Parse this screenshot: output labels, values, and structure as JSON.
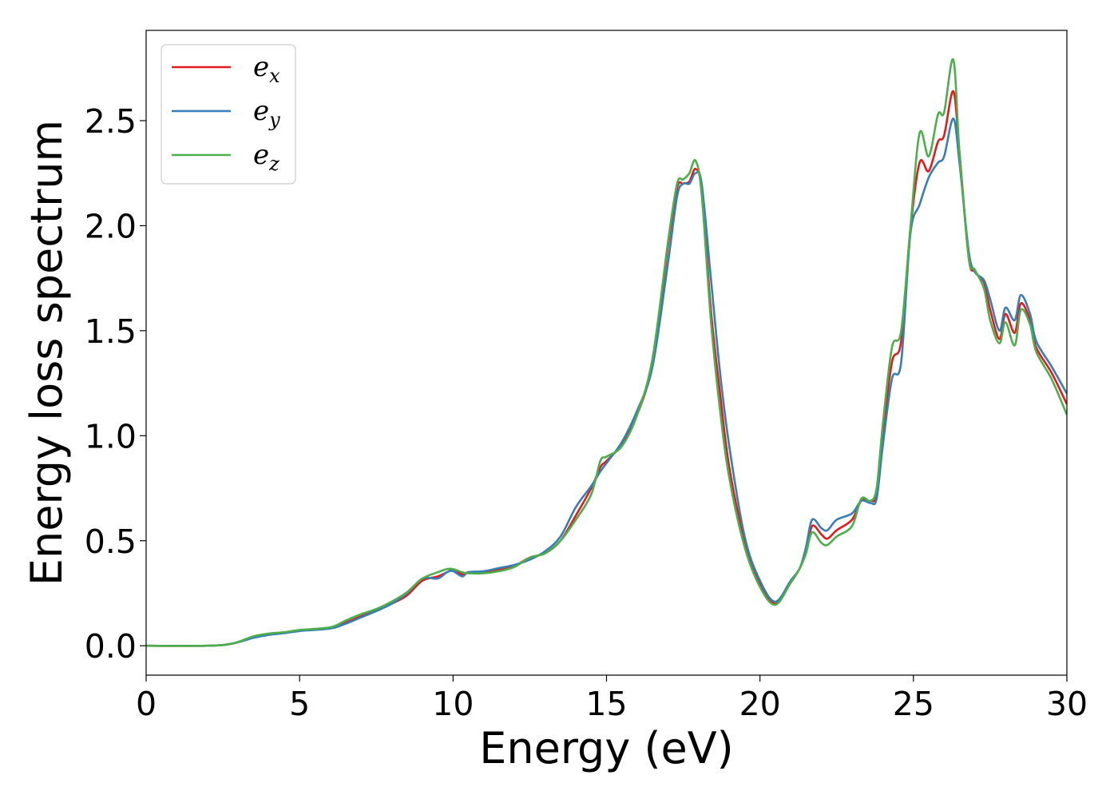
{
  "chart_data": {
    "type": "line",
    "title": "",
    "xlabel": "Energy (eV)",
    "ylabel": "Energy loss spectrum",
    "xlim": [
      0,
      30
    ],
    "ylim": [
      -0.14,
      2.93
    ],
    "xticks": [
      0,
      5,
      10,
      15,
      20,
      25,
      30
    ],
    "xtick_labels": [
      "0",
      "5",
      "10",
      "15",
      "20",
      "25",
      "30"
    ],
    "yticks": [
      0.0,
      0.5,
      1.0,
      1.5,
      2.0,
      2.5
    ],
    "ytick_labels": [
      "0.0",
      "0.5",
      "1.0",
      "1.5",
      "2.0",
      "2.5"
    ],
    "grid": false,
    "legend_position": "top-left",
    "series": [
      {
        "name": "e_x",
        "legend": {
          "base": "e",
          "sub": "x"
        },
        "color": "#e41a1c",
        "points": [
          [
            0,
            0.0
          ],
          [
            2,
            0.0
          ],
          [
            2.8,
            0.01
          ],
          [
            3.5,
            0.04
          ],
          [
            4,
            0.055
          ],
          [
            4.5,
            0.062
          ],
          [
            5,
            0.072
          ],
          [
            6,
            0.085
          ],
          [
            6.5,
            0.11
          ],
          [
            7,
            0.14
          ],
          [
            7.5,
            0.17
          ],
          [
            8,
            0.2
          ],
          [
            8.5,
            0.24
          ],
          [
            9,
            0.31
          ],
          [
            9.5,
            0.33
          ],
          [
            9.8,
            0.35
          ],
          [
            10,
            0.36
          ],
          [
            10.3,
            0.34
          ],
          [
            10.5,
            0.35
          ],
          [
            11,
            0.35
          ],
          [
            11.5,
            0.36
          ],
          [
            12,
            0.38
          ],
          [
            12.5,
            0.42
          ],
          [
            13,
            0.44
          ],
          [
            13.5,
            0.5
          ],
          [
            14,
            0.62
          ],
          [
            14.5,
            0.75
          ],
          [
            14.8,
            0.85
          ],
          [
            15,
            0.88
          ],
          [
            15.5,
            0.96
          ],
          [
            16,
            1.1
          ],
          [
            16.5,
            1.35
          ],
          [
            17,
            1.9
          ],
          [
            17.3,
            2.18
          ],
          [
            17.5,
            2.2
          ],
          [
            17.7,
            2.21
          ],
          [
            17.9,
            2.27
          ],
          [
            18.1,
            2.17
          ],
          [
            18.4,
            1.6
          ],
          [
            18.7,
            1.2
          ],
          [
            19,
            0.85
          ],
          [
            19.5,
            0.5
          ],
          [
            20,
            0.3
          ],
          [
            20.5,
            0.2
          ],
          [
            21,
            0.3
          ],
          [
            21.3,
            0.37
          ],
          [
            21.5,
            0.45
          ],
          [
            21.7,
            0.57
          ],
          [
            22,
            0.53
          ],
          [
            22.2,
            0.51
          ],
          [
            22.5,
            0.55
          ],
          [
            23,
            0.6
          ],
          [
            23.3,
            0.69
          ],
          [
            23.6,
            0.69
          ],
          [
            23.8,
            0.72
          ],
          [
            24,
            1.0
          ],
          [
            24.3,
            1.35
          ],
          [
            24.6,
            1.45
          ],
          [
            24.9,
            1.98
          ],
          [
            25.2,
            2.3
          ],
          [
            25.5,
            2.26
          ],
          [
            25.8,
            2.4
          ],
          [
            26,
            2.43
          ],
          [
            26.3,
            2.64
          ],
          [
            26.5,
            2.35
          ],
          [
            26.8,
            1.85
          ],
          [
            27,
            1.78
          ],
          [
            27.3,
            1.73
          ],
          [
            27.5,
            1.6
          ],
          [
            27.8,
            1.46
          ],
          [
            28,
            1.58
          ],
          [
            28.3,
            1.49
          ],
          [
            28.5,
            1.63
          ],
          [
            28.8,
            1.55
          ],
          [
            29,
            1.42
          ],
          [
            29.5,
            1.3
          ],
          [
            30,
            1.15
          ]
        ]
      },
      {
        "name": "e_y",
        "legend": {
          "base": "e",
          "sub": "y"
        },
        "color": "#377eb8",
        "points": [
          [
            0,
            0.0
          ],
          [
            2,
            0.0
          ],
          [
            2.8,
            0.01
          ],
          [
            3.5,
            0.038
          ],
          [
            4,
            0.052
          ],
          [
            4.5,
            0.06
          ],
          [
            5,
            0.07
          ],
          [
            6,
            0.082
          ],
          [
            6.5,
            0.105
          ],
          [
            7,
            0.135
          ],
          [
            7.5,
            0.165
          ],
          [
            8,
            0.2
          ],
          [
            8.5,
            0.25
          ],
          [
            9,
            0.32
          ],
          [
            9.5,
            0.32
          ],
          [
            9.8,
            0.35
          ],
          [
            10,
            0.355
          ],
          [
            10.3,
            0.33
          ],
          [
            10.5,
            0.35
          ],
          [
            11,
            0.355
          ],
          [
            11.5,
            0.37
          ],
          [
            12,
            0.385
          ],
          [
            12.5,
            0.41
          ],
          [
            13,
            0.45
          ],
          [
            13.5,
            0.52
          ],
          [
            14,
            0.66
          ],
          [
            14.5,
            0.76
          ],
          [
            14.8,
            0.83
          ],
          [
            15,
            0.87
          ],
          [
            15.5,
            0.97
          ],
          [
            16,
            1.12
          ],
          [
            16.5,
            1.33
          ],
          [
            17,
            1.82
          ],
          [
            17.3,
            2.14
          ],
          [
            17.5,
            2.2
          ],
          [
            17.7,
            2.2
          ],
          [
            17.9,
            2.25
          ],
          [
            18.1,
            2.2
          ],
          [
            18.4,
            1.75
          ],
          [
            18.7,
            1.3
          ],
          [
            19,
            0.95
          ],
          [
            19.5,
            0.52
          ],
          [
            20,
            0.31
          ],
          [
            20.5,
            0.21
          ],
          [
            21,
            0.31
          ],
          [
            21.3,
            0.37
          ],
          [
            21.5,
            0.47
          ],
          [
            21.7,
            0.6
          ],
          [
            22,
            0.56
          ],
          [
            22.2,
            0.55
          ],
          [
            22.5,
            0.6
          ],
          [
            23,
            0.63
          ],
          [
            23.3,
            0.69
          ],
          [
            23.6,
            0.68
          ],
          [
            23.8,
            0.7
          ],
          [
            24,
            0.95
          ],
          [
            24.3,
            1.27
          ],
          [
            24.6,
            1.35
          ],
          [
            24.9,
            1.96
          ],
          [
            25.2,
            2.1
          ],
          [
            25.5,
            2.23
          ],
          [
            25.8,
            2.3
          ],
          [
            26,
            2.33
          ],
          [
            26.3,
            2.51
          ],
          [
            26.5,
            2.3
          ],
          [
            26.8,
            1.88
          ],
          [
            27,
            1.78
          ],
          [
            27.3,
            1.74
          ],
          [
            27.5,
            1.65
          ],
          [
            27.8,
            1.5
          ],
          [
            28,
            1.61
          ],
          [
            28.3,
            1.55
          ],
          [
            28.5,
            1.67
          ],
          [
            28.8,
            1.58
          ],
          [
            29,
            1.45
          ],
          [
            29.5,
            1.33
          ],
          [
            30,
            1.2
          ]
        ]
      },
      {
        "name": "e_z",
        "legend": {
          "base": "e",
          "sub": "z"
        },
        "color": "#4daf4a",
        "points": [
          [
            0,
            0.0
          ],
          [
            2,
            0.0
          ],
          [
            2.8,
            0.01
          ],
          [
            3.5,
            0.045
          ],
          [
            4,
            0.058
          ],
          [
            4.5,
            0.065
          ],
          [
            5,
            0.075
          ],
          [
            6,
            0.088
          ],
          [
            6.5,
            0.12
          ],
          [
            7,
            0.15
          ],
          [
            7.5,
            0.175
          ],
          [
            8,
            0.21
          ],
          [
            8.5,
            0.255
          ],
          [
            9,
            0.32
          ],
          [
            9.5,
            0.35
          ],
          [
            9.8,
            0.365
          ],
          [
            10,
            0.365
          ],
          [
            10.3,
            0.35
          ],
          [
            10.5,
            0.345
          ],
          [
            11,
            0.345
          ],
          [
            11.5,
            0.355
          ],
          [
            12,
            0.375
          ],
          [
            12.5,
            0.42
          ],
          [
            13,
            0.44
          ],
          [
            13.5,
            0.5
          ],
          [
            14,
            0.6
          ],
          [
            14.5,
            0.72
          ],
          [
            14.8,
            0.88
          ],
          [
            15,
            0.9
          ],
          [
            15.5,
            0.95
          ],
          [
            16,
            1.1
          ],
          [
            16.5,
            1.37
          ],
          [
            17,
            1.92
          ],
          [
            17.3,
            2.2
          ],
          [
            17.5,
            2.22
          ],
          [
            17.7,
            2.25
          ],
          [
            17.9,
            2.31
          ],
          [
            18.1,
            2.15
          ],
          [
            18.4,
            1.55
          ],
          [
            18.7,
            1.12
          ],
          [
            19,
            0.8
          ],
          [
            19.5,
            0.47
          ],
          [
            20,
            0.28
          ],
          [
            20.5,
            0.195
          ],
          [
            21,
            0.3
          ],
          [
            21.3,
            0.37
          ],
          [
            21.5,
            0.44
          ],
          [
            21.7,
            0.54
          ],
          [
            22,
            0.49
          ],
          [
            22.2,
            0.48
          ],
          [
            22.5,
            0.52
          ],
          [
            23,
            0.57
          ],
          [
            23.3,
            0.7
          ],
          [
            23.6,
            0.69
          ],
          [
            23.8,
            0.75
          ],
          [
            24,
            1.05
          ],
          [
            24.3,
            1.42
          ],
          [
            24.6,
            1.5
          ],
          [
            24.9,
            1.99
          ],
          [
            25.2,
            2.44
          ],
          [
            25.5,
            2.33
          ],
          [
            25.8,
            2.53
          ],
          [
            26,
            2.54
          ],
          [
            26.3,
            2.79
          ],
          [
            26.5,
            2.35
          ],
          [
            26.8,
            1.85
          ],
          [
            27,
            1.79
          ],
          [
            27.3,
            1.7
          ],
          [
            27.5,
            1.55
          ],
          [
            27.8,
            1.44
          ],
          [
            28,
            1.54
          ],
          [
            28.3,
            1.43
          ],
          [
            28.5,
            1.6
          ],
          [
            28.8,
            1.53
          ],
          [
            29,
            1.4
          ],
          [
            29.5,
            1.27
          ],
          [
            30,
            1.1
          ]
        ]
      }
    ]
  }
}
